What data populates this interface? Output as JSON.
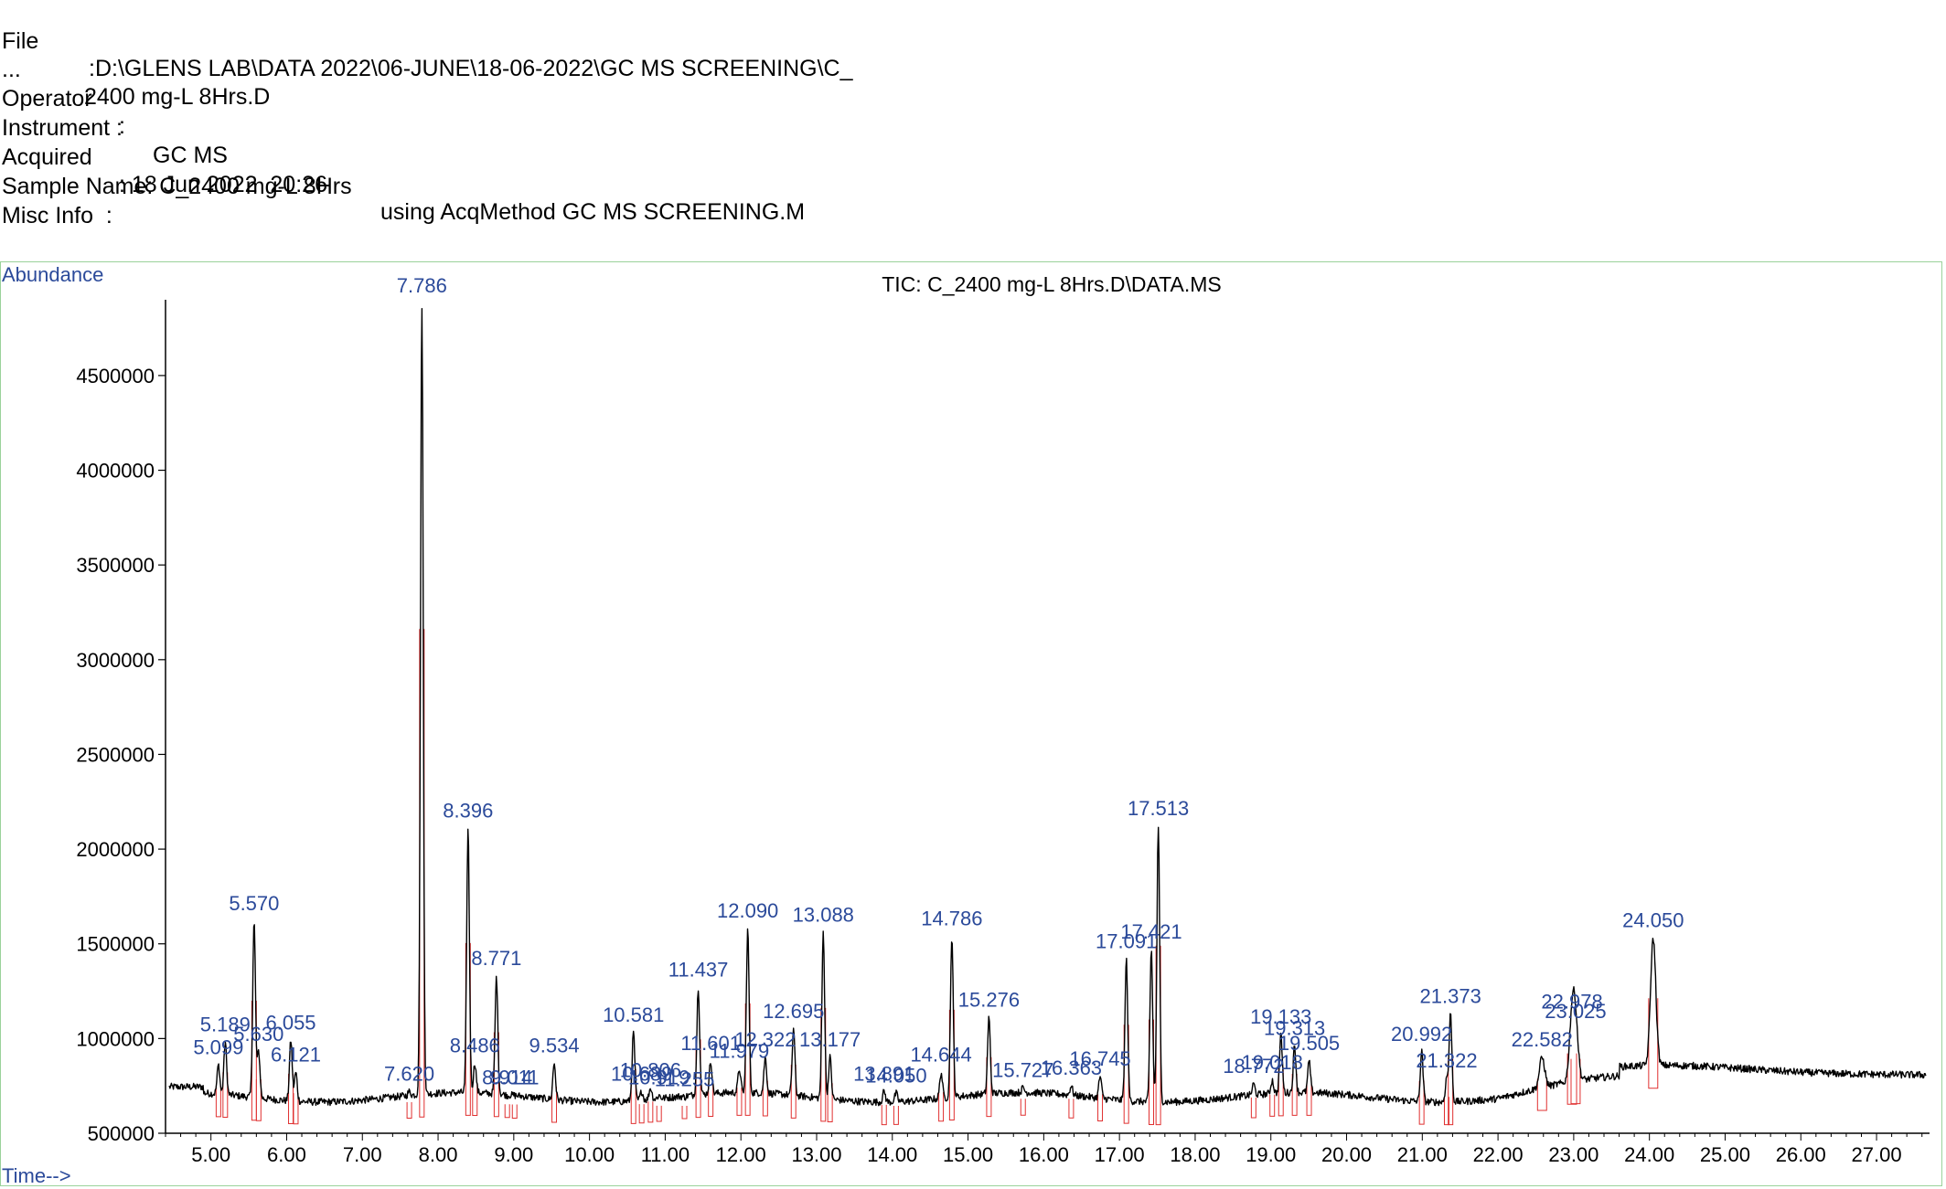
{
  "header": {
    "file_label": "File",
    "file_value": ":D:\\GLENS LAB\\DATA 2022\\06-JUNE\\18-06-2022\\GC MS SCREENING\\C_",
    "file_cont_label": "...",
    "file_cont_value": "2400 mg-L 8Hrs.D",
    "operator_label": "Operator",
    "operator_value": ":",
    "instrument_label": "Instrument :",
    "instrument_value": "GC MS",
    "acquired_label": "Acquired",
    "acquired_value": ": 18 Jun 2022  20:26",
    "acquired_method": "using AcqMethod GC MS SCREENING.M",
    "sample_label": "Sample Name: C_2400 mg-L 8Hrs",
    "misc_label": "Misc Info  :"
  },
  "chart_data": {
    "type": "line",
    "title": "TIC: C_2400 mg-L 8Hrs.D\\DATA.MS",
    "ylabel": "Abundance",
    "xlabel": "Time-->",
    "xlim": [
      4.4,
      27.7
    ],
    "ylim": [
      500000,
      4900000
    ],
    "yticks": [
      500000,
      1000000,
      1500000,
      2000000,
      2500000,
      3000000,
      3500000,
      4000000,
      4500000
    ],
    "ytick_labels": [
      "500000",
      "1000000",
      "1500000",
      "2000000",
      "2500000",
      "3000000",
      "3500000",
      "4000000",
      "4500000"
    ],
    "xticks": [
      5,
      6,
      7,
      8,
      9,
      10,
      11,
      12,
      13,
      14,
      15,
      16,
      17,
      18,
      19,
      20,
      21,
      22,
      23,
      24,
      25,
      26,
      27
    ],
    "xtick_labels": [
      "5.00",
      "6.00",
      "7.00",
      "8.00",
      "9.00",
      "10.00",
      "11.00",
      "12.00",
      "13.00",
      "14.00",
      "15.00",
      "16.00",
      "17.00",
      "18.00",
      "19.00",
      "20.00",
      "21.00",
      "22.00",
      "23.00",
      "24.00",
      "25.00",
      "26.00",
      "27.00"
    ],
    "line_color": "#000000",
    "label_color": "#2b4a9a",
    "integration_color": "#e03030",
    "peaks": [
      {
        "label": "5.099",
        "t": 5.099,
        "height": 860000
      },
      {
        "label": "5.189",
        "t": 5.189,
        "height": 980000
      },
      {
        "label": "5.570",
        "t": 5.57,
        "height": 1620000
      },
      {
        "label": "5.630",
        "t": 5.63,
        "height": 930000
      },
      {
        "label": "6.055",
        "t": 6.055,
        "height": 990000
      },
      {
        "label": "6.121",
        "t": 6.121,
        "height": 820000
      },
      {
        "label": "7.620",
        "t": 7.62,
        "height": 720000
      },
      {
        "label": "7.786",
        "t": 7.786,
        "height": 4880000
      },
      {
        "label": "8.396",
        "t": 8.396,
        "height": 2110000
      },
      {
        "label": "8.486",
        "t": 8.486,
        "height": 870000
      },
      {
        "label": "8.771",
        "t": 8.771,
        "height": 1330000
      },
      {
        "label": "8.914",
        "t": 8.914,
        "height": 700000
      },
      {
        "label": "9.011",
        "t": 9.011,
        "height": 700000
      },
      {
        "label": "9.534",
        "t": 9.534,
        "height": 870000
      },
      {
        "label": "10.581",
        "t": 10.581,
        "height": 1030000
      },
      {
        "label": "10.689",
        "t": 10.689,
        "height": 720000
      },
      {
        "label": "10.806",
        "t": 10.806,
        "height": 740000
      },
      {
        "label": "10.919",
        "t": 10.919,
        "height": 700000
      },
      {
        "label": "11.255",
        "t": 11.255,
        "height": 690000
      },
      {
        "label": "11.437",
        "t": 11.437,
        "height": 1270000
      },
      {
        "label": "11.601",
        "t": 11.601,
        "height": 880000
      },
      {
        "label": "11.979",
        "t": 11.979,
        "height": 840000
      },
      {
        "label": "12.090",
        "t": 12.09,
        "height": 1580000
      },
      {
        "label": "12.322",
        "t": 12.322,
        "height": 900000
      },
      {
        "label": "12.695",
        "t": 12.695,
        "height": 1050000
      },
      {
        "label": "13.088",
        "t": 13.088,
        "height": 1560000
      },
      {
        "label": "13.177",
        "t": 13.177,
        "height": 900000
      },
      {
        "label": "13.891",
        "t": 13.891,
        "height": 720000
      },
      {
        "label": "14.050",
        "t": 14.05,
        "height": 710000
      },
      {
        "label": "14.644",
        "t": 14.644,
        "height": 820000
      },
      {
        "label": "14.786",
        "t": 14.786,
        "height": 1540000
      },
      {
        "label": "15.276",
        "t": 15.276,
        "height": 1110000
      },
      {
        "label": "15.727",
        "t": 15.727,
        "height": 740000
      },
      {
        "label": "16.363",
        "t": 16.363,
        "height": 750000
      },
      {
        "label": "16.745",
        "t": 16.745,
        "height": 800000
      },
      {
        "label": "17.091",
        "t": 17.091,
        "height": 1420000
      },
      {
        "label": "17.421",
        "t": 17.421,
        "height": 1470000
      },
      {
        "label": "17.513",
        "t": 17.513,
        "height": 2120000
      },
      {
        "label": "18.772",
        "t": 18.772,
        "height": 760000
      },
      {
        "label": "19.018",
        "t": 19.018,
        "height": 780000
      },
      {
        "label": "19.133",
        "t": 19.133,
        "height": 1020000
      },
      {
        "label": "19.313",
        "t": 19.313,
        "height": 960000
      },
      {
        "label": "19.505",
        "t": 19.505,
        "height": 880000
      },
      {
        "label": "20.992",
        "t": 20.992,
        "height": 930000
      },
      {
        "label": "21.322",
        "t": 21.322,
        "height": 790000
      },
      {
        "label": "21.373",
        "t": 21.373,
        "height": 1130000
      },
      {
        "label": "22.582",
        "t": 22.582,
        "height": 900000
      },
      {
        "label": "22.978",
        "t": 22.978,
        "height": 1100000
      },
      {
        "label": "23.025",
        "t": 23.025,
        "height": 1050000
      },
      {
        "label": "24.050",
        "t": 24.05,
        "height": 1530000
      }
    ]
  }
}
